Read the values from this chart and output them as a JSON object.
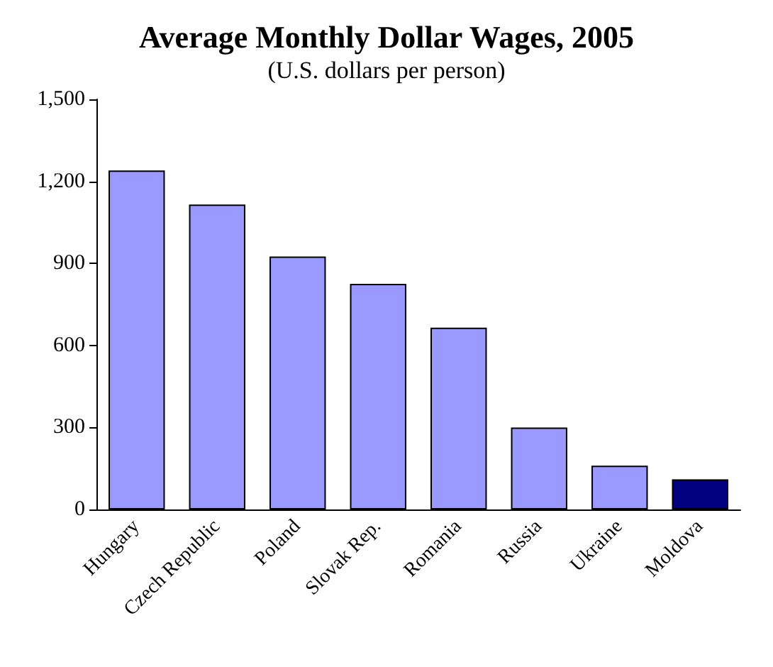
{
  "chart_data": {
    "type": "bar",
    "title": "Average Monthly Dollar Wages, 2005",
    "subtitle": "(U.S. dollars per person)",
    "categories": [
      "Hungary",
      "Czech Republic",
      "Poland",
      "Slovak Rep.",
      "Romania",
      "Russia",
      "Ukraine",
      "Moldova"
    ],
    "values": [
      1240,
      1115,
      925,
      825,
      665,
      300,
      160,
      110
    ],
    "colors": [
      "#9999ff",
      "#9999ff",
      "#9999ff",
      "#9999ff",
      "#9999ff",
      "#9999ff",
      "#9999ff",
      "#000080"
    ],
    "ylim": [
      0,
      1500
    ],
    "yticks": [
      0,
      300,
      600,
      900,
      {
        "value": 1200,
        "label": "1,200"
      },
      {
        "value": 1500,
        "label": "1,500"
      }
    ],
    "grid": false
  }
}
